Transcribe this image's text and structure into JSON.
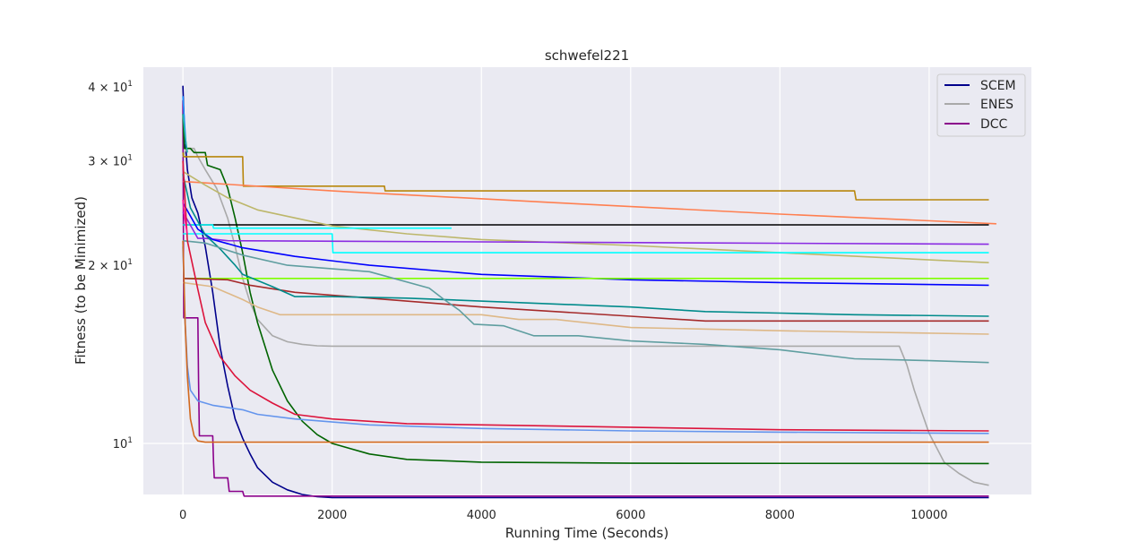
{
  "chart_data": {
    "type": "line",
    "title": "schwefel221",
    "xlabel": "Running Time (Seconds)",
    "ylabel": "Fitness (to be Minimized)",
    "xlim": [
      -530,
      11370
    ],
    "ylim": [
      8.2,
      43.2
    ],
    "yscale": "log",
    "grid": true,
    "legend_position": "top-right",
    "x_ticks": [
      0,
      2000,
      4000,
      6000,
      8000,
      10000
    ],
    "x_tick_labels": [
      "0",
      "2000",
      "4000",
      "6000",
      "8000",
      "10000"
    ],
    "y_ticks": [
      10,
      20,
      30,
      40
    ],
    "y_tick_labels": [
      "10",
      "2 × 10",
      "3 × 10",
      "4 × 10"
    ],
    "y_tick_exponent": "1",
    "legend": [
      {
        "label": "SCEM",
        "color": "#00008b"
      },
      {
        "label": "ENES",
        "color": "#a9a9a9"
      },
      {
        "label": "DCC",
        "color": "#8b008b"
      }
    ],
    "series": [
      {
        "color": "#00008b",
        "points": [
          [
            0,
            40.2
          ],
          [
            20,
            34
          ],
          [
            60,
            29
          ],
          [
            120,
            26
          ],
          [
            200,
            24.5
          ],
          [
            300,
            21.5
          ],
          [
            400,
            18
          ],
          [
            500,
            14.5
          ],
          [
            600,
            12.5
          ],
          [
            700,
            11
          ],
          [
            800,
            10.2
          ],
          [
            900,
            9.6
          ],
          [
            1000,
            9.1
          ],
          [
            1200,
            8.6
          ],
          [
            1400,
            8.35
          ],
          [
            1600,
            8.2
          ],
          [
            1800,
            8.13
          ],
          [
            2000,
            8.1
          ],
          [
            10800,
            8.1
          ]
        ]
      },
      {
        "color": "#8b008b",
        "points": [
          [
            0,
            38
          ],
          [
            10,
            16.3
          ],
          [
            200,
            16.3
          ],
          [
            210,
            12.7
          ],
          [
            220,
            10.3
          ],
          [
            400,
            10.3
          ],
          [
            410,
            9.3
          ],
          [
            420,
            8.75
          ],
          [
            600,
            8.75
          ],
          [
            620,
            8.3
          ],
          [
            800,
            8.3
          ],
          [
            820,
            8.15
          ],
          [
            10800,
            8.15
          ]
        ]
      },
      {
        "color": "#a9a9a9",
        "points": [
          [
            0,
            30.5
          ],
          [
            50,
            31.5
          ],
          [
            150,
            31.5
          ],
          [
            200,
            30.5
          ],
          [
            300,
            29
          ],
          [
            450,
            27
          ],
          [
            600,
            24
          ],
          [
            700,
            21.5
          ],
          [
            800,
            19
          ],
          [
            900,
            17.3
          ],
          [
            1000,
            16.2
          ],
          [
            1200,
            15.2
          ],
          [
            1400,
            14.85
          ],
          [
            1600,
            14.7
          ],
          [
            1800,
            14.62
          ],
          [
            2000,
            14.6
          ],
          [
            9600,
            14.6
          ],
          [
            9700,
            13.6
          ],
          [
            9800,
            12.3
          ],
          [
            9900,
            11.3
          ],
          [
            10000,
            10.4
          ],
          [
            10200,
            9.3
          ],
          [
            10400,
            8.9
          ],
          [
            10600,
            8.6
          ],
          [
            10800,
            8.5
          ]
        ]
      },
      {
        "color": "#006400",
        "points": [
          [
            0,
            36
          ],
          [
            20,
            31.5
          ],
          [
            100,
            31.5
          ],
          [
            150,
            31
          ],
          [
            300,
            31
          ],
          [
            330,
            29.5
          ],
          [
            500,
            29
          ],
          [
            600,
            27
          ],
          [
            700,
            24
          ],
          [
            800,
            21
          ],
          [
            900,
            18
          ],
          [
            1000,
            16
          ],
          [
            1200,
            13.3
          ],
          [
            1400,
            11.8
          ],
          [
            1600,
            10.9
          ],
          [
            1800,
            10.35
          ],
          [
            2000,
            10
          ],
          [
            2500,
            9.6
          ],
          [
            3000,
            9.4
          ],
          [
            4000,
            9.3
          ],
          [
            6000,
            9.26
          ],
          [
            10800,
            9.25
          ]
        ]
      },
      {
        "color": "#b8860b",
        "points": [
          [
            0,
            31
          ],
          [
            10,
            30.5
          ],
          [
            800,
            30.5
          ],
          [
            810,
            27.2
          ],
          [
            2700,
            27.2
          ],
          [
            2710,
            26.7
          ],
          [
            9000,
            26.7
          ],
          [
            9020,
            25.8
          ],
          [
            10800,
            25.8
          ]
        ]
      },
      {
        "color": "#ff7f50",
        "points": [
          [
            0,
            27.7
          ],
          [
            2000,
            26.7
          ],
          [
            5000,
            25.5
          ],
          [
            8000,
            24.4
          ],
          [
            10900,
            23.5
          ]
        ]
      },
      {
        "color": "#000000",
        "points": [
          [
            0,
            23.4
          ],
          [
            10800,
            23.4
          ]
        ]
      },
      {
        "color": "#bdb76b",
        "points": [
          [
            0,
            28.8
          ],
          [
            300,
            27.3
          ],
          [
            600,
            26
          ],
          [
            1000,
            24.8
          ],
          [
            2000,
            23.3
          ],
          [
            3000,
            22.6
          ],
          [
            4000,
            22.1
          ],
          [
            6000,
            21.6
          ],
          [
            8000,
            21
          ],
          [
            10800,
            20.2
          ]
        ]
      },
      {
        "color": "#00ffff",
        "points": [
          [
            0,
            23.4
          ],
          [
            400,
            23.4
          ],
          [
            410,
            23.1
          ],
          [
            3600,
            23.1
          ]
        ]
      },
      {
        "color": "#00ffff",
        "points": [
          [
            0,
            22.6
          ],
          [
            2000,
            22.6
          ],
          [
            2010,
            21
          ],
          [
            10800,
            21
          ]
        ]
      },
      {
        "color": "#8a2be2",
        "points": [
          [
            0,
            24.6
          ],
          [
            200,
            22.2
          ],
          [
            300,
            22.2
          ],
          [
            600,
            22
          ],
          [
            10800,
            21.7
          ]
        ]
      },
      {
        "color": "#0000ff",
        "points": [
          [
            0,
            25.5
          ],
          [
            200,
            23
          ],
          [
            400,
            22.1
          ],
          [
            800,
            21.4
          ],
          [
            1500,
            20.7
          ],
          [
            2500,
            20
          ],
          [
            4000,
            19.3
          ],
          [
            6000,
            18.9
          ],
          [
            8000,
            18.7
          ],
          [
            10800,
            18.5
          ]
        ]
      },
      {
        "color": "#7fff00",
        "points": [
          [
            0,
            19
          ],
          [
            10800,
            19
          ]
        ]
      },
      {
        "color": "#a52a2a",
        "points": [
          [
            0,
            19
          ],
          [
            600,
            18.9
          ],
          [
            900,
            18.5
          ],
          [
            1500,
            18
          ],
          [
            2500,
            17.6
          ],
          [
            4000,
            17
          ],
          [
            6000,
            16.4
          ],
          [
            7000,
            16.1
          ],
          [
            8000,
            16.1
          ],
          [
            10800,
            16.1
          ]
        ]
      },
      {
        "color": "#008b8b",
        "points": [
          [
            0,
            28.5
          ],
          [
            100,
            25
          ],
          [
            300,
            22.5
          ],
          [
            500,
            21.3
          ],
          [
            700,
            20
          ],
          [
            800,
            19.3
          ],
          [
            1200,
            18.4
          ],
          [
            1500,
            17.7
          ],
          [
            2000,
            17.7
          ],
          [
            3000,
            17.6
          ],
          [
            5000,
            17.2
          ],
          [
            6000,
            17
          ],
          [
            7000,
            16.7
          ],
          [
            8000,
            16.6
          ],
          [
            9000,
            16.5
          ],
          [
            10800,
            16.4
          ]
        ]
      },
      {
        "color": "#deb887",
        "points": [
          [
            0,
            18.7
          ],
          [
            400,
            18.4
          ],
          [
            800,
            17.5
          ],
          [
            1000,
            17
          ],
          [
            1300,
            16.5
          ],
          [
            4000,
            16.5
          ],
          [
            4500,
            16.2
          ],
          [
            5000,
            16.2
          ],
          [
            6000,
            15.7
          ],
          [
            8000,
            15.5
          ],
          [
            10800,
            15.3
          ]
        ]
      },
      {
        "color": "#5f9ea0",
        "points": [
          [
            0,
            22
          ],
          [
            300,
            21.8
          ],
          [
            800,
            20.8
          ],
          [
            1400,
            20
          ],
          [
            2500,
            19.5
          ],
          [
            3300,
            18.3
          ],
          [
            3500,
            17.5
          ],
          [
            3700,
            16.8
          ],
          [
            3900,
            15.9
          ],
          [
            4300,
            15.8
          ],
          [
            4700,
            15.2
          ],
          [
            5300,
            15.2
          ],
          [
            6000,
            14.9
          ],
          [
            7000,
            14.7
          ],
          [
            8000,
            14.4
          ],
          [
            9000,
            13.9
          ],
          [
            10000,
            13.8
          ],
          [
            10800,
            13.7
          ]
        ]
      },
      {
        "color": "#dc143c",
        "points": [
          [
            0,
            30
          ],
          [
            60,
            22
          ],
          [
            200,
            18.2
          ],
          [
            300,
            16
          ],
          [
            500,
            14
          ],
          [
            700,
            13
          ],
          [
            900,
            12.3
          ],
          [
            1200,
            11.7
          ],
          [
            1500,
            11.2
          ],
          [
            2000,
            11
          ],
          [
            3000,
            10.8
          ],
          [
            5000,
            10.7
          ],
          [
            8000,
            10.55
          ],
          [
            10800,
            10.5
          ]
        ]
      },
      {
        "color": "#6495ed",
        "points": [
          [
            0,
            21.5
          ],
          [
            30,
            16
          ],
          [
            60,
            13.5
          ],
          [
            100,
            12.3
          ],
          [
            200,
            11.8
          ],
          [
            400,
            11.6
          ],
          [
            600,
            11.5
          ],
          [
            800,
            11.4
          ],
          [
            1000,
            11.2
          ],
          [
            1500,
            11
          ],
          [
            2500,
            10.75
          ],
          [
            4000,
            10.6
          ],
          [
            6000,
            10.5
          ],
          [
            8000,
            10.45
          ],
          [
            10800,
            10.4
          ]
        ]
      },
      {
        "color": "#d2691e",
        "points": [
          [
            0,
            22
          ],
          [
            30,
            16
          ],
          [
            60,
            13
          ],
          [
            100,
            11
          ],
          [
            150,
            10.3
          ],
          [
            200,
            10.1
          ],
          [
            300,
            10.05
          ],
          [
            10800,
            10.05
          ]
        ]
      },
      {
        "color": "#ff1493",
        "points": [
          [
            0,
            25.8
          ],
          [
            10,
            25
          ],
          [
            20,
            24.3
          ],
          [
            30,
            23.8
          ],
          [
            40,
            23.3
          ],
          [
            50,
            22.9
          ],
          [
            60,
            22.6
          ]
        ]
      },
      {
        "color": "#1e90ff",
        "points": [
          [
            0,
            38.6
          ],
          [
            20,
            35
          ],
          [
            40,
            32
          ]
        ]
      },
      {
        "color": "#20b2aa",
        "points": [
          [
            0,
            36
          ],
          [
            30,
            33
          ],
          [
            60,
            31
          ]
        ]
      }
    ]
  }
}
